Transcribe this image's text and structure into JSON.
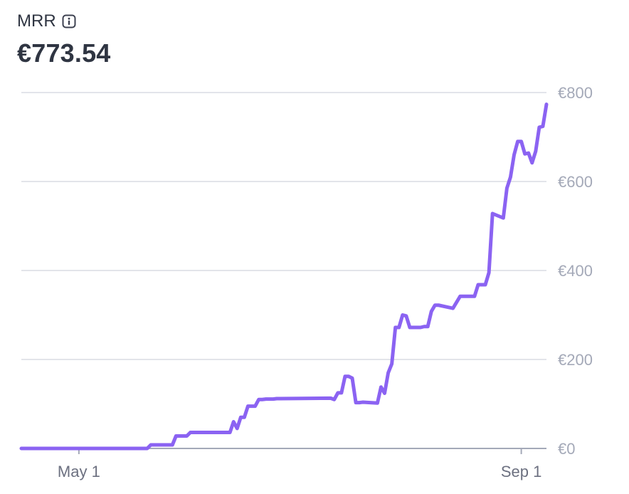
{
  "metric": {
    "name": "MRR",
    "value": "€773.54",
    "info_icon": "info-icon"
  },
  "colors": {
    "line": "#8b63f2",
    "grid": "#d9dbe3",
    "axis": "#a4a9b8",
    "text": "#2f3542"
  },
  "chart_data": {
    "type": "line",
    "title": "MRR",
    "xlabel": "",
    "ylabel": "",
    "grid": true,
    "y_axis_position": "right",
    "ylim": [
      0,
      800
    ],
    "y_ticks": [
      0,
      200,
      400,
      600,
      800
    ],
    "y_tick_labels": [
      "€0",
      "€200",
      "€400",
      "€600",
      "€800"
    ],
    "xlim": [
      "2024-04-15",
      "2024-09-08"
    ],
    "x_ticks": [
      "2024-05-01",
      "2024-09-01"
    ],
    "x_tick_labels": [
      "May 1",
      "Sep 1"
    ],
    "series": [
      {
        "x": [
          "2024-04-15",
          "2024-05-01",
          "2024-05-20",
          "2024-05-21",
          "2024-05-27",
          "2024-05-28",
          "2024-05-31",
          "2024-06-01",
          "2024-06-02",
          "2024-06-12",
          "2024-06-13",
          "2024-06-14",
          "2024-06-15",
          "2024-06-16",
          "2024-06-17",
          "2024-06-19",
          "2024-06-20",
          "2024-06-21",
          "2024-06-22",
          "2024-06-24",
          "2024-06-25",
          "2024-06-26",
          "2024-07-10",
          "2024-07-11",
          "2024-07-12",
          "2024-07-13",
          "2024-07-14",
          "2024-07-15",
          "2024-07-16",
          "2024-07-17",
          "2024-07-18",
          "2024-07-19",
          "2024-07-23",
          "2024-07-24",
          "2024-07-25",
          "2024-07-26",
          "2024-07-27",
          "2024-07-28",
          "2024-07-29",
          "2024-07-30",
          "2024-07-31",
          "2024-08-01",
          "2024-08-03",
          "2024-08-04",
          "2024-08-05",
          "2024-08-06",
          "2024-08-07",
          "2024-08-08",
          "2024-08-09",
          "2024-08-13",
          "2024-08-15",
          "2024-08-16",
          "2024-08-18",
          "2024-08-19",
          "2024-08-20",
          "2024-08-22",
          "2024-08-23",
          "2024-08-24",
          "2024-08-27",
          "2024-08-28",
          "2024-08-29",
          "2024-08-30",
          "2024-08-31",
          "2024-09-01",
          "2024-09-02",
          "2024-09-03",
          "2024-09-04",
          "2024-09-05",
          "2024-09-06",
          "2024-09-07",
          "2024-09-08"
        ],
        "values": [
          0,
          0,
          0,
          8,
          8,
          28,
          28,
          36,
          36,
          36,
          60,
          45,
          70,
          70,
          95,
          95,
          110,
          110,
          111,
          111,
          112,
          112,
          113,
          110,
          125,
          125,
          162,
          162,
          158,
          103,
          103,
          104,
          102,
          138,
          124,
          170,
          190,
          272,
          272,
          300,
          298,
          272,
          272,
          272,
          274,
          274,
          308,
          322,
          322,
          315,
          342,
          342,
          342,
          342,
          368,
          368,
          395,
          528,
          518,
          585,
          610,
          660,
          690,
          690,
          662,
          664,
          642,
          668,
          722,
          724,
          773.54
        ]
      }
    ]
  }
}
